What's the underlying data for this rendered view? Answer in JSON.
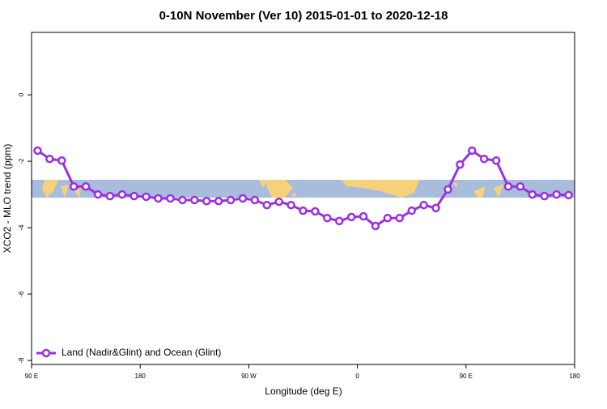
{
  "chart_data": {
    "type": "line",
    "title": "0-10N November (Ver 10)   2015-01-01 to 2020-12-18",
    "x_label": "Longitude (deg E)",
    "y_label": "XCO2 - MLO trend (ppm)",
    "x": [
      95,
      105,
      115,
      125,
      135,
      145,
      155,
      165,
      175,
      185,
      195,
      205,
      215,
      225,
      235,
      245,
      255,
      265,
      275,
      285,
      295,
      305,
      315,
      325,
      335,
      345,
      355,
      365,
      375,
      385,
      395,
      405,
      415,
      425,
      435,
      445,
      455,
      465,
      475,
      485,
      495,
      505,
      515,
      525,
      535
    ],
    "series": [
      {
        "name": "Land (Nadir&Glint) and Ocean (Glint)",
        "color": "#9b30e0",
        "values": [
          -1.68,
          -1.93,
          -1.98,
          -2.76,
          -2.76,
          -3.0,
          -3.05,
          -3.0,
          -3.05,
          -3.07,
          -3.12,
          -3.12,
          -3.17,
          -3.17,
          -3.2,
          -3.2,
          -3.17,
          -3.12,
          -3.17,
          -3.32,
          -3.22,
          -3.32,
          -3.49,
          -3.51,
          -3.71,
          -3.8,
          -3.68,
          -3.66,
          -3.95,
          -3.71,
          -3.71,
          -3.49,
          -3.32,
          -3.41,
          -2.85,
          -2.1,
          -1.68,
          -1.93,
          -1.98,
          -2.76,
          -2.76,
          -3.0,
          -3.05,
          -3.0,
          -3.02
        ]
      }
    ],
    "xlim": [
      90,
      540
    ],
    "xticks": [
      {
        "value": 90,
        "label": "90 E"
      },
      180,
      {
        "value": 270,
        "label": "90 W"
      },
      {
        "value": 360,
        "label": "0"
      },
      {
        "value": 450,
        "label": "90 E"
      },
      {
        "value": 540,
        "label": "180"
      }
    ],
    "ylim": [
      -8.12,
      1.88
    ],
    "yticks": [
      -8,
      -6,
      -4,
      -2,
      0
    ],
    "legend": "bottom-left"
  }
}
